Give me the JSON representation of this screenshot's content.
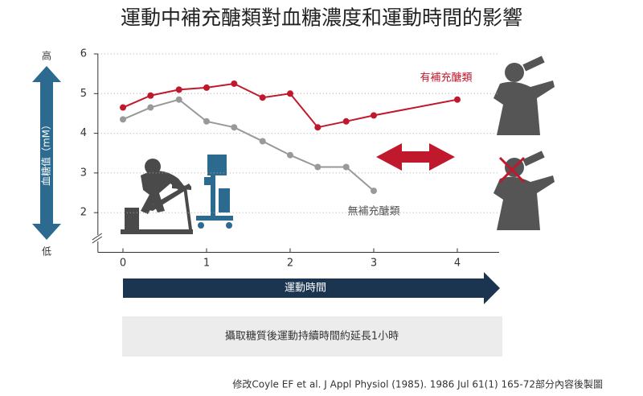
{
  "chart_data": {
    "type": "line",
    "title": "運動中補充醣類對血糖濃度和運動時間的影響",
    "y_label": "血糖值（mM）",
    "y_high": "高",
    "y_low": "低",
    "x_label": "運動時間",
    "xlim": [
      -0.3,
      4.5
    ],
    "xticks": [
      0,
      1,
      2,
      3,
      4
    ],
    "ylim": [
      1,
      6
    ],
    "yticks": [
      2,
      3,
      4,
      5,
      6
    ],
    "grid": true,
    "series": [
      {
        "name": "有補充醣類",
        "color": "#c0182c",
        "x": [
          0,
          0.33,
          0.67,
          1,
          1.33,
          1.67,
          2,
          2.33,
          2.67,
          3,
          4
        ],
        "values": [
          4.65,
          4.95,
          5.1,
          5.15,
          5.25,
          4.9,
          5.0,
          4.15,
          4.3,
          4.45,
          4.85
        ]
      },
      {
        "name": "無補充醣類",
        "color": "#999999",
        "x": [
          0,
          0.33,
          0.67,
          1,
          1.33,
          1.67,
          2,
          2.33,
          2.67,
          3
        ],
        "values": [
          4.35,
          4.65,
          4.85,
          4.3,
          4.15,
          3.8,
          3.45,
          3.15,
          3.15,
          2.55
        ]
      }
    ],
    "note": "攝取糖質後運動持續時間約延長1小時",
    "source": "修改Coyle EF et al. J Appl Physiol (1985). 1986 Jul 61(1) 165-72部分內容後製圖"
  }
}
